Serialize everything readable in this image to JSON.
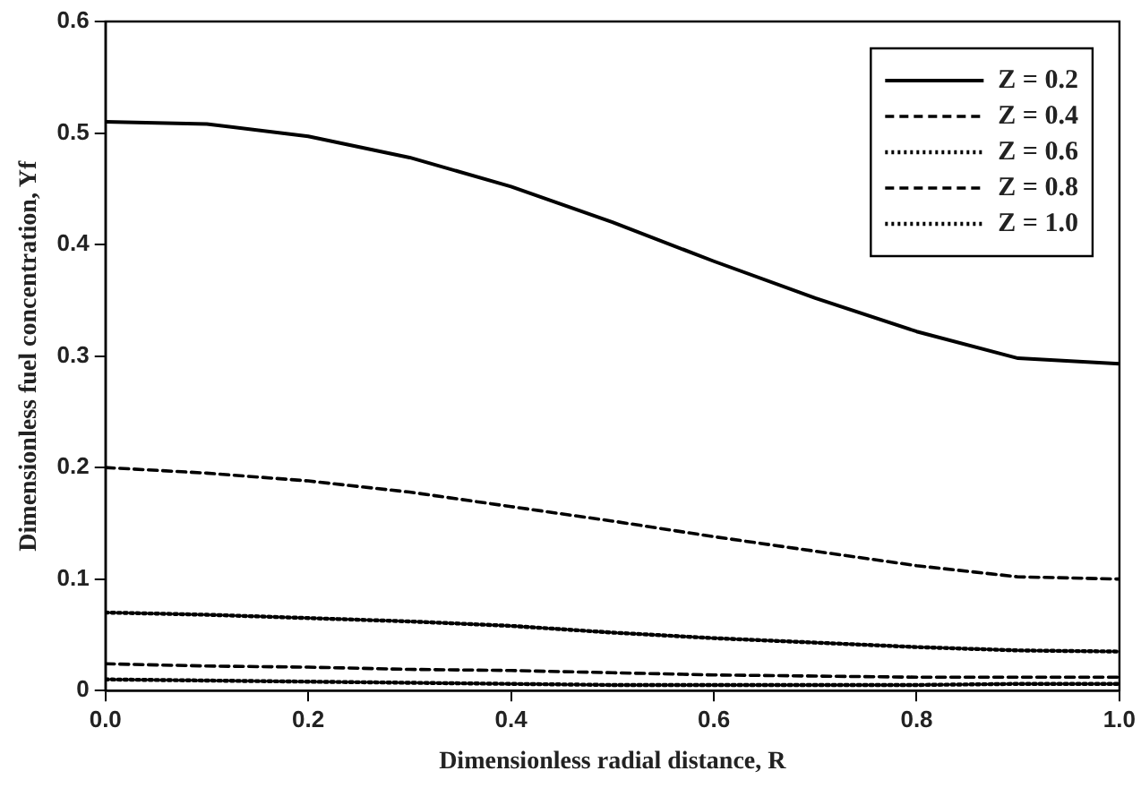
{
  "chart_data": {
    "type": "line",
    "xlabel": "Dimensionless radial distance, R",
    "ylabel": "Dimensionless fuel concentration, Yf",
    "x": [
      0,
      0.1,
      0.2,
      0.3,
      0.4,
      0.5,
      0.6,
      0.7,
      0.8,
      0.9,
      1.0
    ],
    "series": [
      {
        "name": "Z = 0.2",
        "color": "#000000",
        "line_style": "solid",
        "values": [
          0.51,
          0.508,
          0.497,
          0.478,
          0.452,
          0.42,
          0.385,
          0.352,
          0.322,
          0.298,
          0.293
        ]
      },
      {
        "name": "Z = 0.4",
        "color": "#000000",
        "line_style": "dashed",
        "values": [
          0.2,
          0.195,
          0.188,
          0.178,
          0.165,
          0.152,
          0.138,
          0.125,
          0.112,
          0.102,
          0.1
        ]
      },
      {
        "name": "Z = 0.6",
        "color": "#000000",
        "line_style": "dotted",
        "values": [
          0.07,
          0.068,
          0.065,
          0.062,
          0.058,
          0.052,
          0.047,
          0.043,
          0.039,
          0.036,
          0.035
        ]
      },
      {
        "name": "Z = 0.8",
        "color": "#000000",
        "line_style": "dashed",
        "values": [
          0.024,
          0.022,
          0.021,
          0.019,
          0.018,
          0.016,
          0.014,
          0.013,
          0.012,
          0.012,
          0.012
        ]
      },
      {
        "name": "Z = 1.0",
        "color": "#000000",
        "line_style": "dotted",
        "values": [
          0.01,
          0.009,
          0.008,
          0.007,
          0.006,
          0.005,
          0.005,
          0.005,
          0.005,
          0.006,
          0.006
        ]
      }
    ],
    "xlim": [
      0,
      1
    ],
    "xticks": [
      {
        "value": 0,
        "label": "0.0"
      },
      0.2,
      0.4,
      0.6,
      0.8,
      {
        "value": 1,
        "label": "1.0"
      }
    ],
    "ylim": [
      0,
      0.6
    ],
    "yticks": [
      0,
      0.1,
      0.2,
      0.3,
      0.4,
      0.5,
      0.6
    ],
    "grid": false,
    "legend": "top right",
    "marker": "none"
  }
}
